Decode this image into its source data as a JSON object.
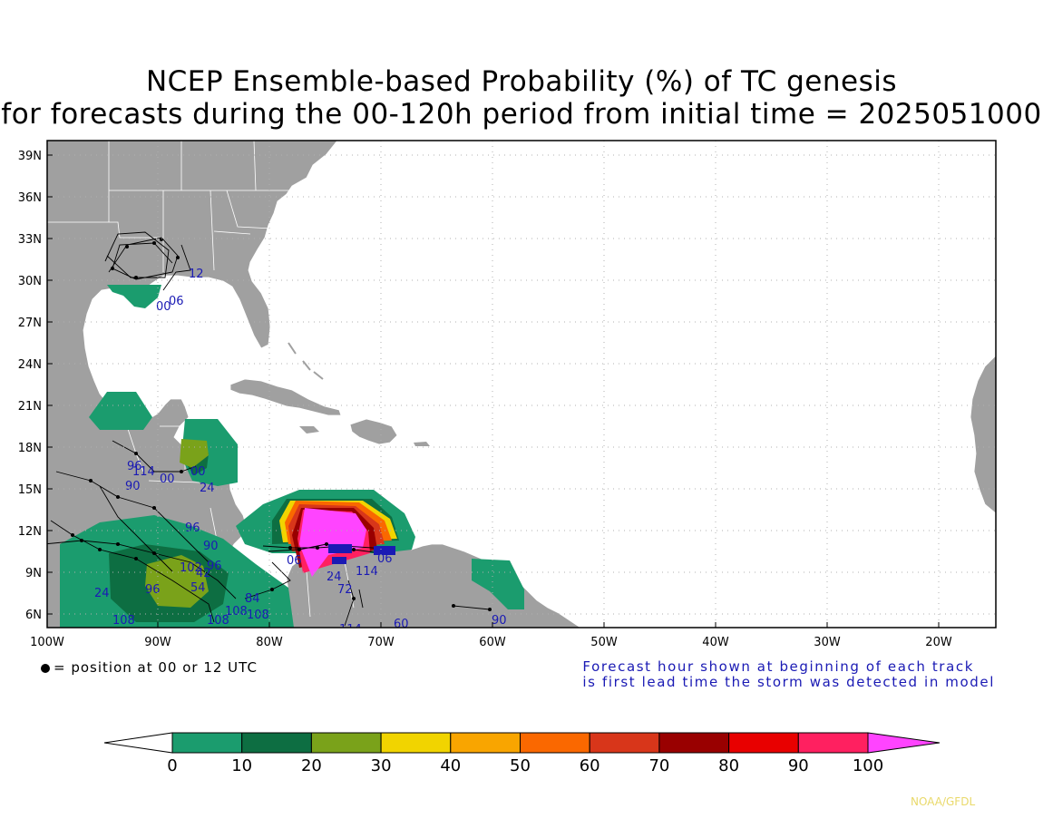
{
  "title_line1": "NCEP Ensemble-based Probability (%) of TC genesis",
  "title_line2": "for forecasts during the 00-120h period from initial time = 2025051000",
  "lat_labels": [
    "39N",
    "36N",
    "33N",
    "30N",
    "27N",
    "24N",
    "21N",
    "18N",
    "15N",
    "12N",
    "9N",
    "6N"
  ],
  "lon_labels": [
    "100W",
    "90W",
    "80W",
    "70W",
    "60W",
    "50W",
    "40W",
    "30W",
    "20W"
  ],
  "legend_position_text": "= position at 00 or 12 UTC",
  "legend_forecast_line1": "Forecast hour shown at beginning of each track",
  "legend_forecast_line2": "is first lead time the storm was detected in model",
  "colorbar": {
    "labels": [
      "0",
      "10",
      "20",
      "30",
      "40",
      "50",
      "60",
      "70",
      "80",
      "90",
      "100"
    ],
    "colors": [
      "#ffffff",
      "#1b9c6e",
      "#0d6e42",
      "#7aa21a",
      "#f1d400",
      "#f9a500",
      "#fa6800",
      "#d8361a",
      "#990000",
      "#e80000",
      "#ff2060",
      "#ff44ff"
    ]
  },
  "track_labels": [
    "12",
    "06",
    "00",
    "96",
    "114",
    "90",
    "00",
    "00",
    "24",
    "96",
    "90",
    "102",
    "96",
    "42",
    "54",
    "24",
    "108",
    "108",
    "108",
    "108",
    "84",
    "96",
    "72",
    "114",
    "60",
    "90",
    "24",
    "114",
    "06",
    "06"
  ],
  "credit": "NOAA/GFDL",
  "colors": {
    "land": "#a0a0a0",
    "ocean": "#ffffff",
    "track_label": "#1a1ab4"
  }
}
